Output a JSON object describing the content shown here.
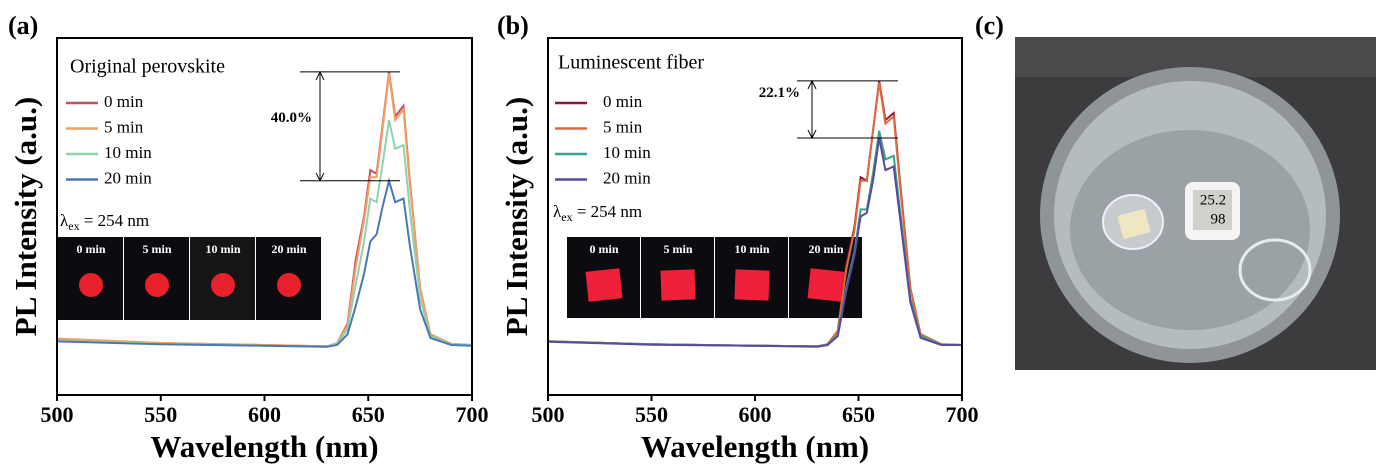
{
  "chart_data": [
    {
      "type": "line",
      "panel_label": "(a)",
      "legend_title": "Original perovskite",
      "xlabel": "Wavelength (nm)",
      "ylabel": "PL Intensity (a.u.)",
      "xlim": [
        500,
        700
      ],
      "xticks": [
        500,
        550,
        600,
        650,
        700
      ],
      "ylim": [
        0,
        100
      ],
      "x": [
        500,
        550,
        600,
        630,
        635,
        640,
        644,
        648,
        651,
        654,
        657,
        660,
        663,
        667,
        670,
        675,
        680,
        690,
        700
      ],
      "series": [
        {
          "name": "0 min",
          "color": "#c4505e",
          "values": [
            15.5,
            14.5,
            14,
            13.6,
            14.5,
            20,
            38,
            50,
            63,
            62,
            76,
            90.5,
            78,
            81,
            60,
            30,
            17,
            14.3,
            14
          ]
        },
        {
          "name": "5 min",
          "color": "#f2a062",
          "values": [
            15.8,
            14.6,
            14,
            13.6,
            14.5,
            19.5,
            36,
            49,
            61,
            61,
            75,
            90,
            77,
            80,
            59,
            30,
            17,
            14.3,
            14
          ]
        },
        {
          "name": "10 min",
          "color": "#8ed2b2",
          "values": [
            15.2,
            14.3,
            13.8,
            13.5,
            14.3,
            18.5,
            31,
            43,
            55,
            54,
            65,
            77,
            69,
            70,
            52,
            27,
            16.5,
            14.2,
            14
          ]
        },
        {
          "name": "20 min",
          "color": "#4a78b0",
          "values": [
            15,
            14.2,
            13.8,
            13.5,
            14,
            17,
            25,
            34,
            43,
            45,
            53,
            60,
            54,
            55,
            42,
            24,
            16,
            14,
            13.8
          ]
        }
      ],
      "excitation": {
        "symbol": "λ",
        "subscript": "ex",
        "text": " = 254 nm"
      },
      "inset_labels": [
        "0 min",
        "5 min",
        "10 min",
        "20 min"
      ],
      "annotation": {
        "text": "40.0%",
        "from": 90.5,
        "to": 60
      }
    },
    {
      "type": "line",
      "panel_label": "(b)",
      "legend_title": "Luminescent fiber",
      "xlabel": "Wavelength (nm)",
      "ylabel": "PL Intensity (a.u.)",
      "xlim": [
        500,
        700
      ],
      "xticks": [
        500,
        550,
        600,
        650,
        700
      ],
      "ylim": [
        0,
        100
      ],
      "x": [
        500,
        550,
        600,
        630,
        635,
        640,
        644,
        648,
        651,
        654,
        657,
        660,
        663,
        667,
        670,
        675,
        680,
        690,
        700
      ],
      "series": [
        {
          "name": "0 min",
          "color": "#8b1a3a",
          "values": [
            15,
            14.2,
            13.8,
            13.6,
            14.2,
            18,
            36,
            47,
            61,
            60,
            74,
            88,
            77,
            79,
            60,
            30,
            17,
            14.2,
            14
          ]
        },
        {
          "name": "5 min",
          "color": "#e06a3a",
          "values": [
            15.1,
            14.2,
            13.8,
            13.6,
            14.2,
            18,
            35,
            46,
            60,
            60,
            74,
            87.5,
            76,
            78,
            59,
            30,
            17,
            14.2,
            14
          ]
        },
        {
          "name": "10 min",
          "color": "#3aa08a",
          "values": [
            15,
            14.2,
            13.8,
            13.6,
            14,
            17,
            30,
            40,
            52,
            52,
            62,
            74,
            66,
            67,
            52,
            27,
            16.5,
            14.1,
            14
          ]
        },
        {
          "name": "20 min",
          "color": "#5a4a9a",
          "values": [
            14.9,
            14.1,
            13.8,
            13.5,
            14,
            16.5,
            29,
            39,
            50,
            51,
            60,
            72,
            63,
            64,
            50,
            26,
            16,
            14,
            14
          ]
        }
      ],
      "excitation": {
        "symbol": "λ",
        "subscript": "ex",
        "text": " = 254 nm"
      },
      "inset_labels": [
        "0 min",
        "5 min",
        "10 min",
        "20 min"
      ],
      "annotation": {
        "text": "22.1%",
        "from": 88,
        "to": 72
      }
    }
  ],
  "photo": {
    "panel_label": "(c)",
    "display_temperature": "25.2",
    "display_humidity": "98"
  }
}
